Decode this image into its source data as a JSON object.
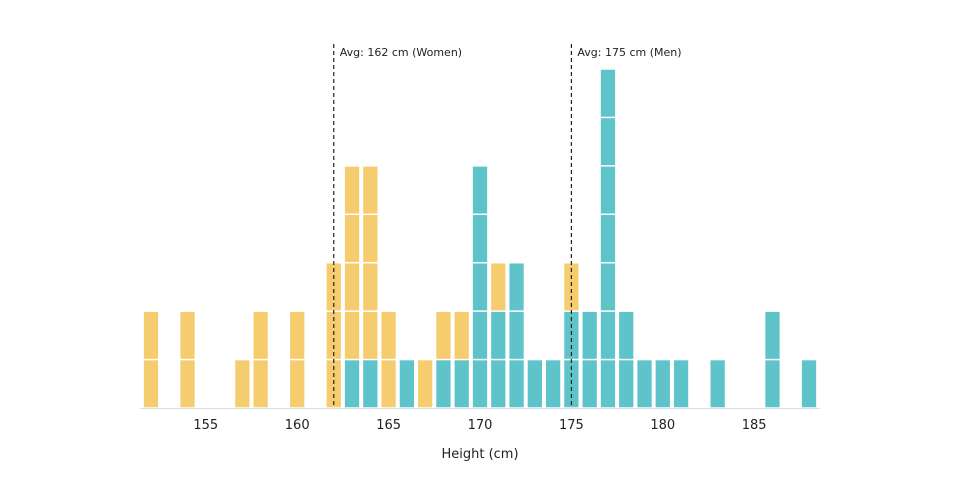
{
  "chart_data": {
    "type": "bar",
    "subtype": "stacked unit histogram",
    "xlabel": "Height (cm)",
    "ylabel": "",
    "xlim": [
      151.4,
      188.6
    ],
    "ylim": [
      0,
      7
    ],
    "xticks": [
      155,
      160,
      165,
      170,
      175,
      180,
      185
    ],
    "grid": false,
    "legend": "none",
    "colors": {
      "women": "#f5cd6e",
      "men": "#5fc4ca"
    },
    "series": [
      {
        "key": "men",
        "color": "#5fc4ca",
        "x": [
          163,
          164,
          166,
          168,
          169,
          170,
          171,
          172,
          173,
          174,
          175,
          176,
          177,
          178,
          179,
          180,
          181,
          183,
          186,
          188
        ],
        "values": [
          1,
          1,
          1,
          1,
          1,
          5,
          2,
          3,
          1,
          1,
          2,
          2,
          7,
          2,
          1,
          1,
          1,
          1,
          2,
          1
        ]
      },
      {
        "key": "women",
        "color": "#f5cd6e",
        "x": [
          152,
          154,
          157,
          158,
          160,
          162,
          163,
          164,
          165,
          167,
          168,
          169,
          171,
          175
        ],
        "values": [
          2,
          2,
          1,
          2,
          2,
          3,
          4,
          4,
          2,
          1,
          1,
          1,
          1,
          1
        ]
      }
    ],
    "annotations": [
      {
        "x": 162,
        "text": "Avg: 162 cm (Women)"
      },
      {
        "x": 175,
        "text": "Avg: 175 cm (Men)"
      }
    ]
  }
}
